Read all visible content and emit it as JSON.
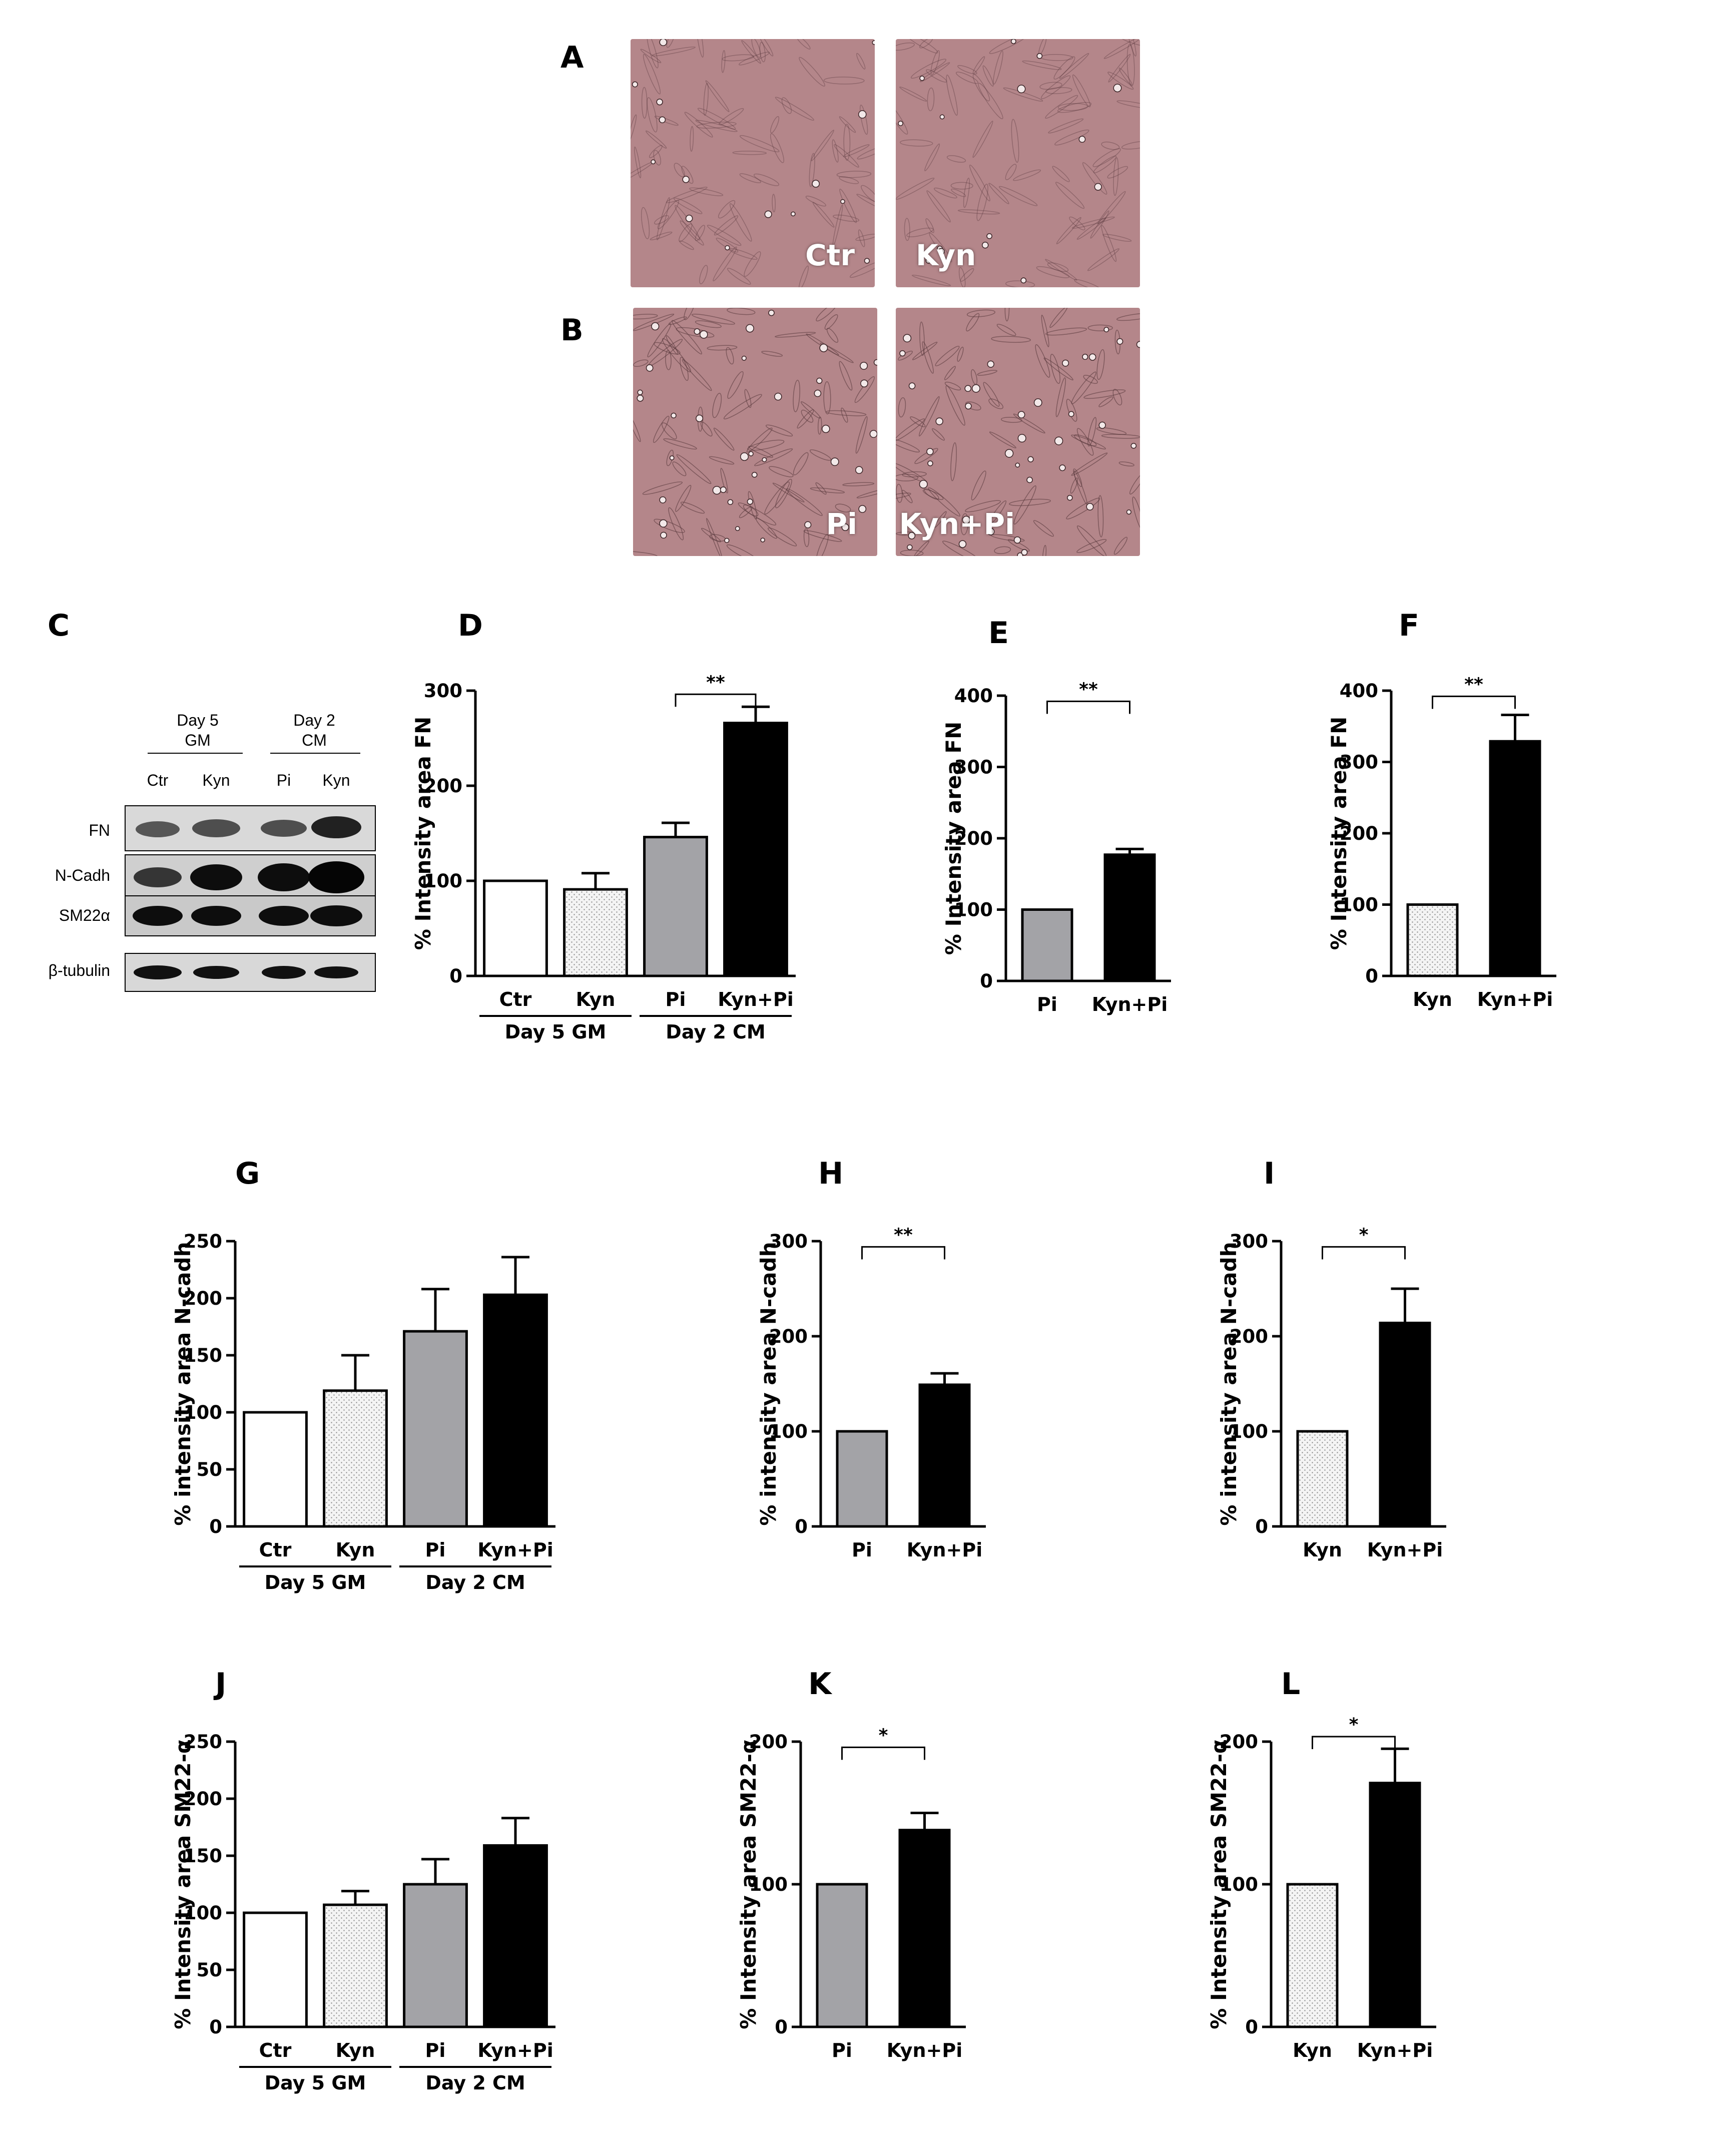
{
  "panels": {
    "A": "A",
    "B": "B",
    "C": "C",
    "D": "D",
    "E": "E",
    "F": "F",
    "G": "G",
    "H": "H",
    "I": "I",
    "J": "J",
    "K": "K",
    "L": "L"
  },
  "micrographs": [
    {
      "label": "Ctr"
    },
    {
      "label": "Kyn"
    },
    {
      "label": "Pi"
    },
    {
      "label": "Kyn+Pi"
    }
  ],
  "western_blot": {
    "groups": [
      {
        "line1": "Day 5",
        "line2": "GM"
      },
      {
        "line1": "Day 2",
        "line2": "CM"
      }
    ],
    "lanes": [
      "Ctr",
      "Kyn",
      "Pi",
      "Kyn"
    ],
    "rows": [
      "FN",
      "N-Cadh",
      "SM22α",
      "β-tubulin"
    ]
  },
  "colors": {
    "white_bar": "#ffffff",
    "dotted_bar": "#f4f4f4",
    "gray_bar": "#a3a3a7",
    "black_bar": "#000000",
    "micro_tint": "#b4868a"
  },
  "chart_data": [
    {
      "id": "D",
      "type": "bar",
      "ylabel": "% Intensity area FN",
      "ylim": [
        0,
        300
      ],
      "yticks": [
        0,
        100,
        200,
        300
      ],
      "categories": [
        "Ctr",
        "Kyn",
        "Pi",
        "Kyn+Pi"
      ],
      "fills": [
        "white",
        "dotted",
        "gray",
        "black"
      ],
      "values": [
        100,
        91,
        146,
        266
      ],
      "errors": [
        0,
        17,
        15,
        17
      ],
      "groups": [
        {
          "label": "Day 5 GM",
          "span": [
            0,
            1
          ]
        },
        {
          "label": "Day 2 CM",
          "span": [
            2,
            3
          ]
        }
      ],
      "significance": [
        {
          "pair": [
            2,
            3
          ],
          "label": "**"
        }
      ]
    },
    {
      "id": "E",
      "type": "bar",
      "ylabel": "% Intensity area FN",
      "ylim": [
        0,
        400
      ],
      "yticks": [
        0,
        100,
        200,
        300,
        400
      ],
      "categories": [
        "Pi",
        "Kyn+Pi"
      ],
      "fills": [
        "gray",
        "black"
      ],
      "values": [
        100,
        177
      ],
      "errors": [
        0,
        8
      ],
      "significance": [
        {
          "pair": [
            0,
            1
          ],
          "label": "**"
        }
      ]
    },
    {
      "id": "F",
      "type": "bar",
      "ylabel": "% Intensity area FN",
      "ylim": [
        0,
        400
      ],
      "yticks": [
        0,
        100,
        200,
        300,
        400
      ],
      "categories": [
        "Kyn",
        "Kyn+Pi"
      ],
      "fills": [
        "dotted",
        "black"
      ],
      "values": [
        100,
        329
      ],
      "errors": [
        0,
        37
      ],
      "significance": [
        {
          "pair": [
            0,
            1
          ],
          "label": "**"
        }
      ]
    },
    {
      "id": "G",
      "type": "bar",
      "ylabel": "% intensity area N-cadh",
      "ylim": [
        0,
        250
      ],
      "yticks": [
        0,
        50,
        100,
        150,
        200,
        250
      ],
      "categories": [
        "Ctr",
        "Kyn",
        "Pi",
        "Kyn+Pi"
      ],
      "fills": [
        "white",
        "dotted",
        "gray",
        "black"
      ],
      "values": [
        100,
        119,
        171,
        203
      ],
      "errors": [
        0,
        31,
        37,
        33
      ],
      "groups": [
        {
          "label": "Day 5 GM",
          "span": [
            0,
            1
          ]
        },
        {
          "label": "Day 2 CM",
          "span": [
            2,
            3
          ]
        }
      ],
      "significance": []
    },
    {
      "id": "H",
      "type": "bar",
      "ylabel": "% intensity area N-cadh",
      "ylim": [
        0,
        300
      ],
      "yticks": [
        0,
        100,
        200,
        300
      ],
      "categories": [
        "Pi",
        "Kyn+Pi"
      ],
      "fills": [
        "gray",
        "black"
      ],
      "values": [
        100,
        149
      ],
      "errors": [
        0,
        12
      ],
      "significance": [
        {
          "pair": [
            0,
            1
          ],
          "label": "**"
        }
      ]
    },
    {
      "id": "I",
      "type": "bar",
      "ylabel": "% intensity area N-cadh",
      "ylim": [
        0,
        300
      ],
      "yticks": [
        0,
        100,
        200,
        300
      ],
      "categories": [
        "Kyn",
        "Kyn+Pi"
      ],
      "fills": [
        "dotted",
        "black"
      ],
      "values": [
        100,
        214
      ],
      "errors": [
        0,
        36
      ],
      "significance": [
        {
          "pair": [
            0,
            1
          ],
          "label": "*"
        }
      ]
    },
    {
      "id": "J",
      "type": "bar",
      "ylabel": "% Intensity area SM22-α",
      "ylim": [
        0,
        250
      ],
      "yticks": [
        0,
        50,
        100,
        150,
        200,
        250
      ],
      "categories": [
        "Ctr",
        "Kyn",
        "Pi",
        "Kyn+Pi"
      ],
      "fills": [
        "white",
        "dotted",
        "gray",
        "black"
      ],
      "values": [
        100,
        107,
        125,
        159
      ],
      "errors": [
        0,
        12,
        22,
        24
      ],
      "groups": [
        {
          "label": "Day 5 GM",
          "span": [
            0,
            1
          ]
        },
        {
          "label": "Day 2 CM",
          "span": [
            2,
            3
          ]
        }
      ],
      "significance": []
    },
    {
      "id": "K",
      "type": "bar",
      "ylabel": "% Intensity area SM22-α",
      "ylim": [
        0,
        200
      ],
      "yticks": [
        0,
        100,
        200
      ],
      "categories": [
        "Pi",
        "Kyn+Pi"
      ],
      "fills": [
        "gray",
        "black"
      ],
      "values": [
        100,
        138
      ],
      "errors": [
        0,
        12
      ],
      "significance": [
        {
          "pair": [
            0,
            1
          ],
          "label": "*"
        }
      ]
    },
    {
      "id": "L",
      "type": "bar",
      "ylabel": "% Intensity area SM22-α",
      "ylim": [
        0,
        200
      ],
      "yticks": [
        0,
        100,
        200
      ],
      "categories": [
        "Kyn",
        "Kyn+Pi"
      ],
      "fills": [
        "dotted",
        "black"
      ],
      "values": [
        100,
        171
      ],
      "errors": [
        0,
        24
      ],
      "significance": [
        {
          "pair": [
            0,
            1
          ],
          "label": "*"
        }
      ]
    }
  ]
}
